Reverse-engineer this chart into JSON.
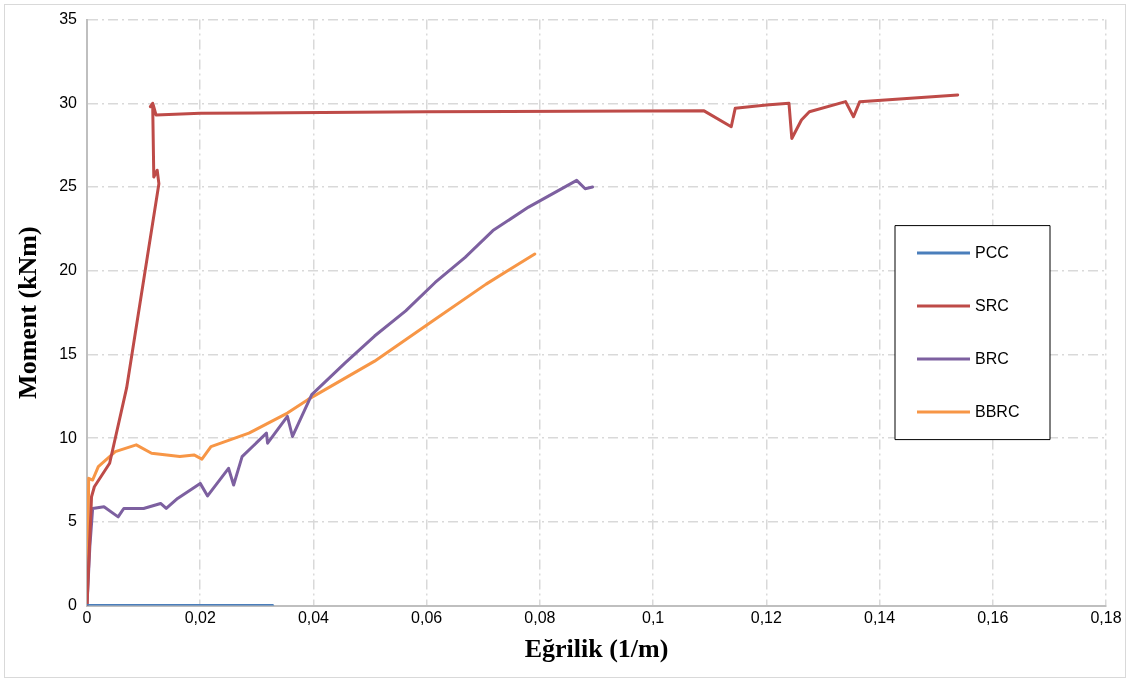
{
  "chart_data": {
    "type": "line",
    "xlabel": "Eğrilik (1/m)",
    "ylabel": "Moment (kNm)",
    "xlim": [
      0,
      0.18
    ],
    "xticks": [
      0,
      {
        "value": 0.02,
        "label": "0,02"
      },
      {
        "value": 0.04,
        "label": "0,04"
      },
      {
        "value": 0.06,
        "label": "0,06"
      },
      {
        "value": 0.08,
        "label": "0,08"
      },
      {
        "value": 0.1,
        "label": "0,1"
      },
      {
        "value": 0.12,
        "label": "0,12"
      },
      {
        "value": 0.14,
        "label": "0,14"
      },
      {
        "value": 0.16,
        "label": "0,16"
      },
      {
        "value": 0.18,
        "label": "0,18"
      }
    ],
    "ylim": [
      0,
      35
    ],
    "yticks": [
      0,
      5,
      10,
      15,
      20,
      25,
      30,
      35
    ],
    "grid": true,
    "legend": "right",
    "marker": "none",
    "line_style": "solid",
    "series": [
      {
        "name": "PCC",
        "color": "#4a7ebb",
        "x": [
          0,
          0.01,
          0.02,
          0.0328
        ],
        "values": [
          0,
          0,
          0,
          0
        ]
      },
      {
        "name": "SRC",
        "color": "#be4b48",
        "x": [
          0,
          0.0008,
          0.0013,
          0.004,
          0.007,
          0.0127,
          0.0124,
          0.0118,
          0.0116,
          0.0112,
          0.0117,
          0.0122,
          0.02,
          0.06,
          0.109,
          0.1138,
          0.1145,
          0.12,
          0.124,
          0.1245,
          0.1262,
          0.1276,
          0.134,
          0.1354,
          0.1365,
          0.1538
        ],
        "values": [
          0,
          6.5,
          7.1,
          8.5,
          13,
          25.2,
          26,
          25.6,
          30,
          29.8,
          29.9,
          29.3,
          29.4,
          29.5,
          29.55,
          28.6,
          29.7,
          29.9,
          30,
          27.9,
          29,
          29.5,
          30.1,
          29.2,
          30.1,
          30.5
        ]
      },
      {
        "name": "BRC",
        "color": "#7d60a0",
        "x": [
          0,
          0.0005,
          0.001,
          0.003,
          0.0055,
          0.0065,
          0.01,
          0.013,
          0.014,
          0.016,
          0.02,
          0.0213,
          0.025,
          0.0259,
          0.0274,
          0.0317,
          0.0319,
          0.0354,
          0.0363,
          0.0397,
          0.0456,
          0.0508,
          0.0563,
          0.0615,
          0.0668,
          0.0717,
          0.078,
          0.0865,
          0.088,
          0.0893
        ],
        "values": [
          0,
          3.5,
          5.8,
          5.9,
          5.3,
          5.8,
          5.8,
          6.1,
          5.8,
          6.4,
          7.3,
          6.55,
          8.2,
          7.2,
          8.9,
          10.3,
          9.7,
          11.3,
          10.1,
          12.6,
          14.5,
          16.1,
          17.6,
          19.3,
          20.8,
          22.4,
          23.8,
          25.4,
          24.9,
          25
        ]
      },
      {
        "name": "BBRC",
        "color": "#f79646",
        "x": [
          0,
          0.0003,
          0.001,
          0.002,
          0.005,
          0.0087,
          0.0114,
          0.0164,
          0.0189,
          0.0203,
          0.0219,
          0.0286,
          0.0354,
          0.039,
          0.0508,
          0.0615,
          0.0705,
          0.0791
        ],
        "values": [
          0,
          7.6,
          7.5,
          8.3,
          9.2,
          9.6,
          9.1,
          8.9,
          9,
          8.75,
          9.5,
          10.3,
          11.5,
          12.3,
          14.6,
          17.1,
          19.2,
          21
        ]
      }
    ]
  }
}
